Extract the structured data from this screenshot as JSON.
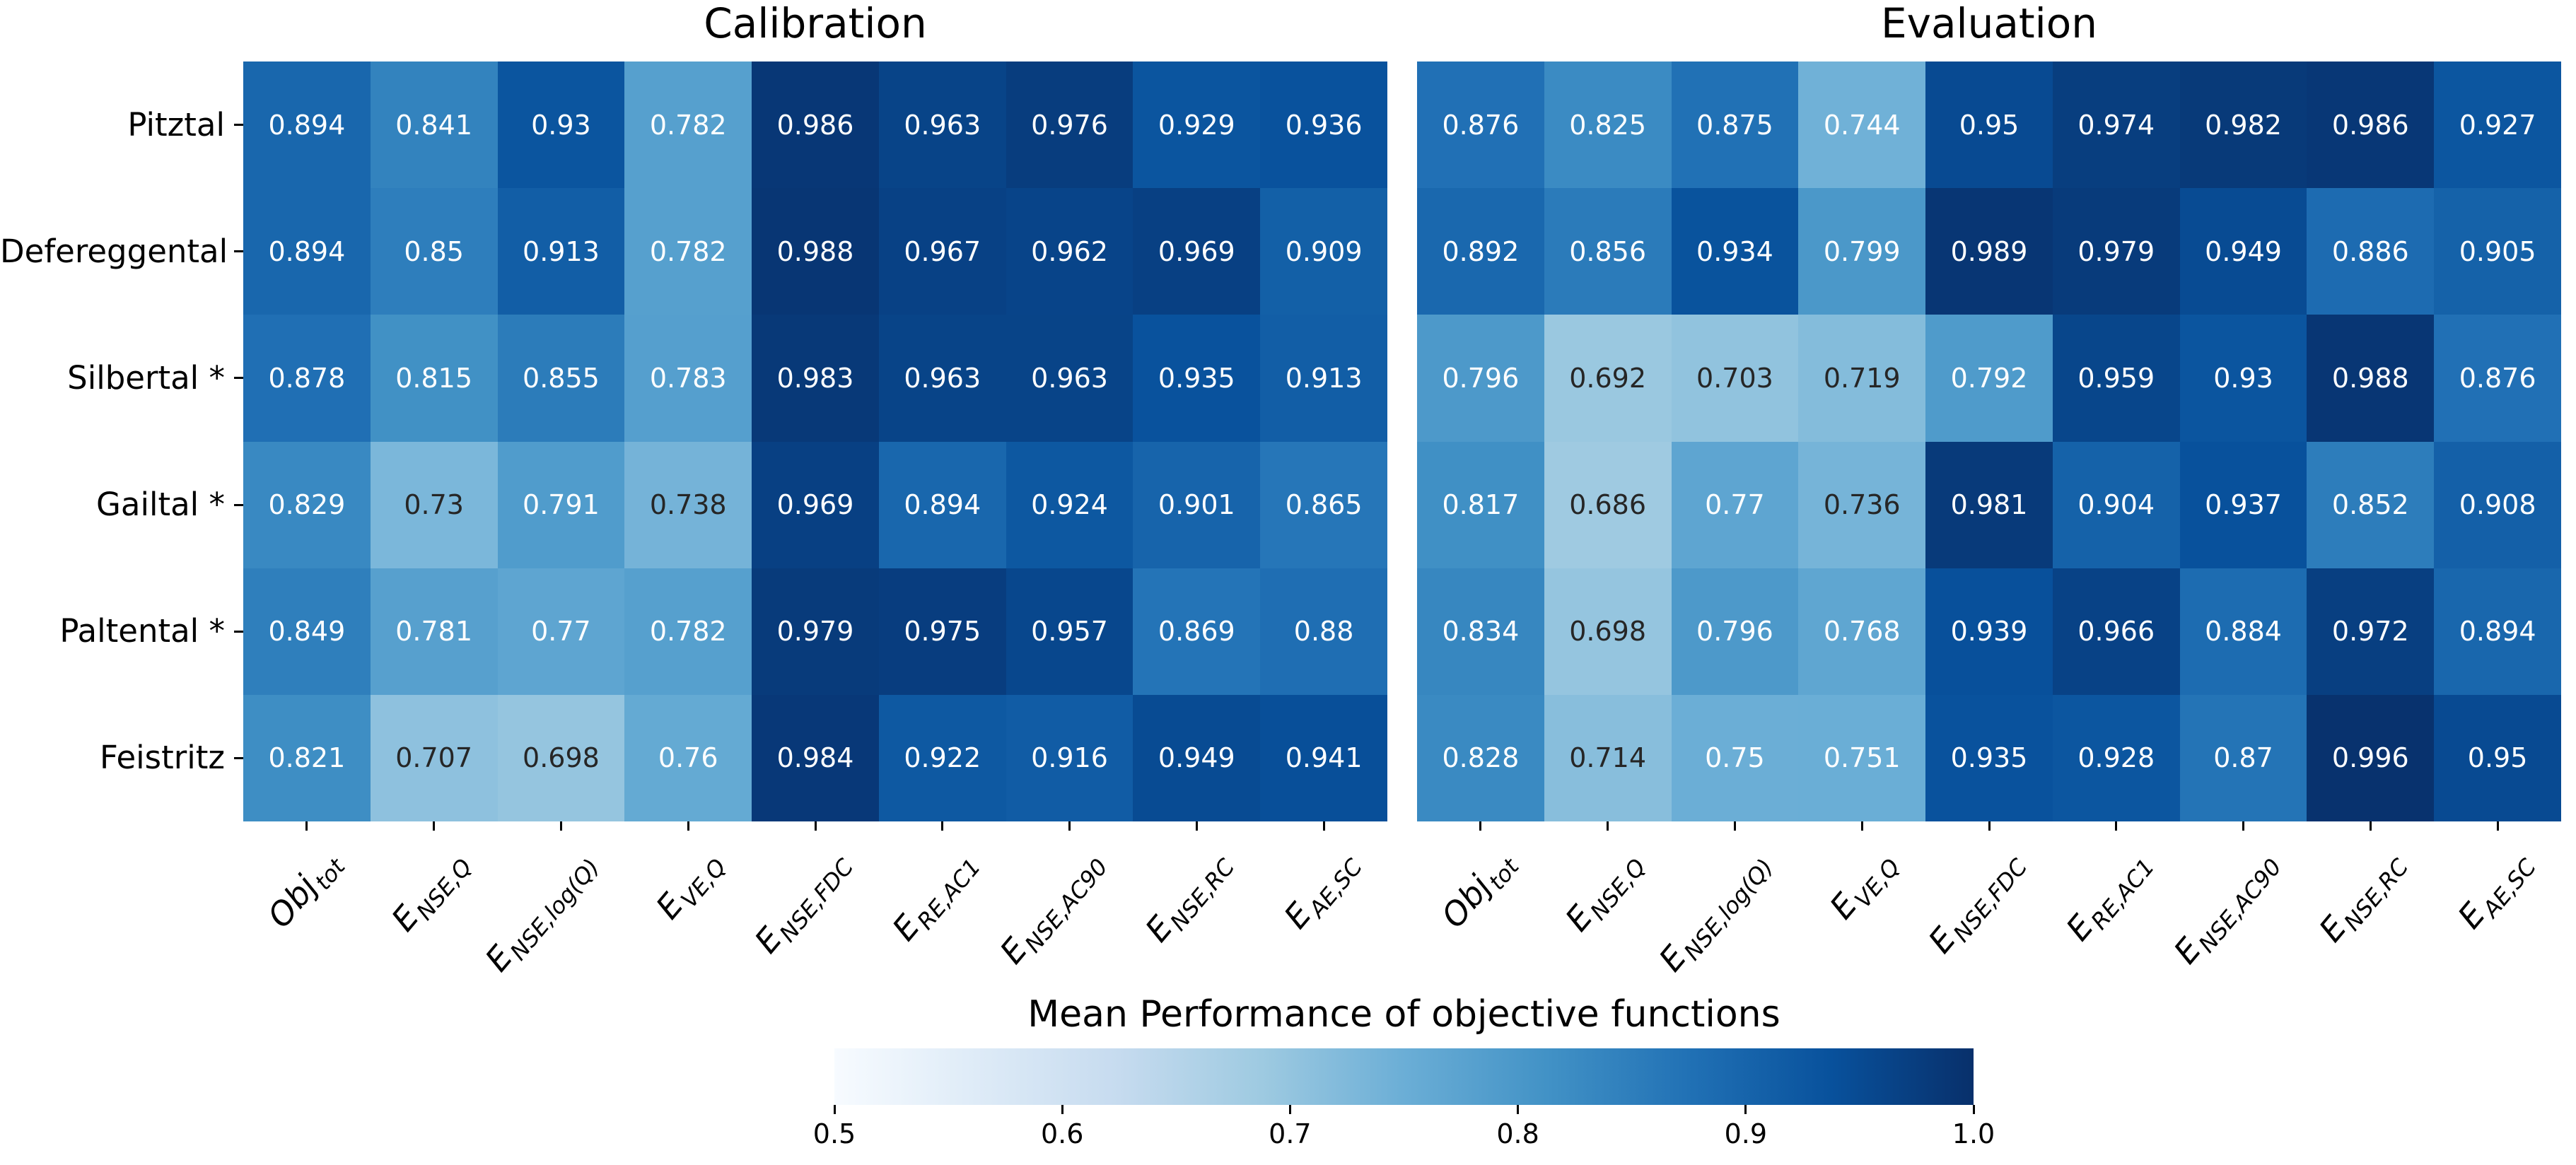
{
  "chart_data": {
    "type": "heatmap",
    "colormap": "Blues",
    "vmin": 0.5,
    "vmax": 1.0,
    "legend_position": "bottom",
    "rows": [
      "Pitztal",
      "Defereggental",
      "Silbertal *",
      "Gailtal *",
      "Paltental *",
      "Feistritz"
    ],
    "columns": [
      {
        "main": "Obj",
        "sub": "tot"
      },
      {
        "main": "E",
        "sub": "NSE,Q"
      },
      {
        "main": "E",
        "sub": "NSE,log(Q)"
      },
      {
        "main": "E",
        "sub": "VE,Q"
      },
      {
        "main": "E",
        "sub": "NSE,FDC"
      },
      {
        "main": "E",
        "sub": "RE,AC1"
      },
      {
        "main": "E",
        "sub": "NSE,AC90"
      },
      {
        "main": "E",
        "sub": "NSE,RC"
      },
      {
        "main": "E",
        "sub": "AE,SC"
      }
    ],
    "panels": [
      {
        "title": "Calibration",
        "values": [
          [
            "0.894",
            "0.841",
            "0.93",
            "0.782",
            "0.986",
            "0.963",
            "0.976",
            "0.929",
            "0.936"
          ],
          [
            "0.894",
            "0.85",
            "0.913",
            "0.782",
            "0.988",
            "0.967",
            "0.962",
            "0.969",
            "0.909"
          ],
          [
            "0.878",
            "0.815",
            "0.855",
            "0.783",
            "0.983",
            "0.963",
            "0.963",
            "0.935",
            "0.913"
          ],
          [
            "0.829",
            "0.73",
            "0.791",
            "0.738",
            "0.969",
            "0.894",
            "0.924",
            "0.901",
            "0.865"
          ],
          [
            "0.849",
            "0.781",
            "0.77",
            "0.782",
            "0.979",
            "0.975",
            "0.957",
            "0.869",
            "0.88"
          ],
          [
            "0.821",
            "0.707",
            "0.698",
            "0.76",
            "0.984",
            "0.922",
            "0.916",
            "0.949",
            "0.941"
          ]
        ]
      },
      {
        "title": "Evaluation",
        "values": [
          [
            "0.876",
            "0.825",
            "0.875",
            "0.744",
            "0.95",
            "0.974",
            "0.982",
            "0.986",
            "0.927"
          ],
          [
            "0.892",
            "0.856",
            "0.934",
            "0.799",
            "0.989",
            "0.979",
            "0.949",
            "0.886",
            "0.905"
          ],
          [
            "0.796",
            "0.692",
            "0.703",
            "0.719",
            "0.792",
            "0.959",
            "0.93",
            "0.988",
            "0.876"
          ],
          [
            "0.817",
            "0.686",
            "0.77",
            "0.736",
            "0.981",
            "0.904",
            "0.937",
            "0.852",
            "0.908"
          ],
          [
            "0.834",
            "0.698",
            "0.796",
            "0.768",
            "0.939",
            "0.966",
            "0.884",
            "0.972",
            "0.894"
          ],
          [
            "0.828",
            "0.714",
            "0.75",
            "0.751",
            "0.935",
            "0.928",
            "0.87",
            "0.996",
            "0.95"
          ]
        ]
      }
    ],
    "colorbar": {
      "title": "Mean Performance of objective functions",
      "ticks": [
        "0.5",
        "0.6",
        "0.7",
        "0.8",
        "0.9",
        "1.0"
      ],
      "anchor_colors": [
        "#f7fbff",
        "#deebf7",
        "#c6dbef",
        "#9ecae1",
        "#6baed6",
        "#4292c6",
        "#2171b5",
        "#08519c",
        "#08306b"
      ]
    }
  }
}
